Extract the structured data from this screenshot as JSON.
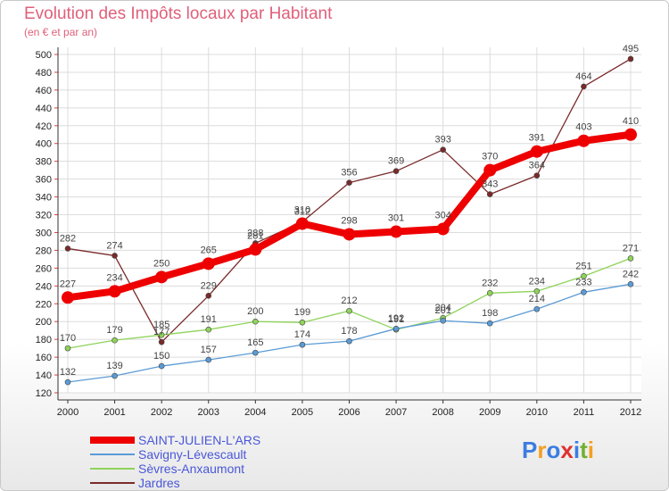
{
  "header": {
    "title": "Evolution des Impôts locaux par Habitant",
    "subtitle": "(en € et par an)"
  },
  "logo": {
    "text": "Proxiti",
    "colors": [
      "#3b7de0",
      "#f4a020",
      "#3b7de0",
      "#e03030",
      "#3b7de0",
      "#70b030",
      "#f4a020"
    ]
  },
  "chart_data": {
    "type": "line",
    "x": [
      "2000",
      "2001",
      "2002",
      "2003",
      "2004",
      "2005",
      "2006",
      "2007",
      "2008",
      "2009",
      "2010",
      "2011",
      "2012"
    ],
    "ylim": [
      120,
      500
    ],
    "yticks": [
      120,
      140,
      160,
      180,
      200,
      220,
      240,
      260,
      280,
      300,
      320,
      340,
      360,
      380,
      400,
      420,
      440,
      460,
      480,
      500
    ],
    "grid": true,
    "legend_position": "bottom-left",
    "series": [
      {
        "name": "SAINT-JULIEN-L'ARS",
        "color": "#ee0000",
        "width": 8,
        "marker": 7,
        "values": [
          227,
          234,
          250,
          265,
          281,
          310,
          298,
          301,
          304,
          370,
          391,
          403,
          410
        ]
      },
      {
        "name": "Savigny-Lévescault",
        "color": "#5b9bd5",
        "width": 1.3,
        "marker": 3,
        "values": [
          132,
          139,
          150,
          157,
          165,
          174,
          178,
          192,
          201,
          198,
          214,
          233,
          242
        ]
      },
      {
        "name": "Sèvres-Anxaumont",
        "color": "#8ed35a",
        "width": 1.3,
        "marker": 3,
        "values": [
          170,
          179,
          185,
          191,
          200,
          199,
          212,
          191,
          204,
          232,
          234,
          251,
          271
        ]
      },
      {
        "name": "Jardres",
        "color": "#7a2a2a",
        "width": 1.3,
        "marker": 3,
        "values": [
          282,
          274,
          177,
          229,
          288,
          312,
          356,
          369,
          393,
          343,
          364,
          464,
          495
        ]
      }
    ]
  }
}
